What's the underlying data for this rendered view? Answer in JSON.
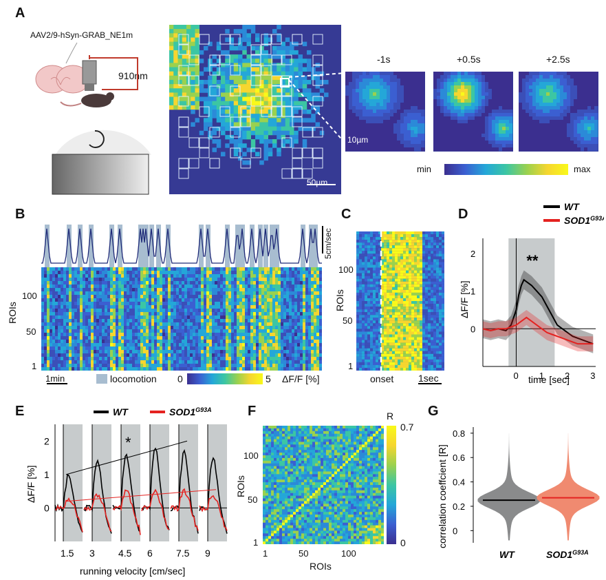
{
  "panel_labels": [
    "A",
    "B",
    "C",
    "D",
    "E",
    "F",
    "G"
  ],
  "panel_a": {
    "virus": "AAV2/9-hSyn-GRAB_NE1m",
    "laser": "910nm",
    "time_points": [
      "-1s",
      "+0.5s",
      "+2.5s"
    ],
    "scale_large": "50µm",
    "scale_small": "10µm",
    "cbar_min": "min",
    "cbar_max": "max"
  },
  "panel_b": {
    "ylabel": "ROIs",
    "yticks": [
      "100",
      "50",
      "1"
    ],
    "speed_scale": "5cm/sec",
    "time_scale": "1min",
    "legend_locomotion": "locomotion",
    "cbar_min": "0",
    "cbar_max": "5",
    "cbar_label": "ΔF/F [%]"
  },
  "panel_c": {
    "ylabel": "ROIs",
    "yticks": [
      "100",
      "50",
      "1"
    ],
    "onset": "onset",
    "time_scale": "1sec"
  },
  "panel_f": {
    "xlabel": "ROIs",
    "ylabel": "ROIs",
    "xticks": [
      "1",
      "50",
      "100"
    ],
    "yticks": [
      "100",
      "50",
      "1"
    ],
    "cbar_label": "R",
    "cbar_max": "0.7",
    "cbar_min": "0"
  },
  "chart_data": [
    {
      "panel": "D",
      "type": "line",
      "xlabel": "time [sec]",
      "ylabel": "ΔF/F [%]",
      "xlim": [
        -1.3,
        3.1
      ],
      "ylim": [
        -1,
        2.4
      ],
      "xticks": [
        0,
        1,
        2,
        3
      ],
      "yticks": [
        0,
        1,
        2
      ],
      "shaded_region": [
        -0.3,
        1.5
      ],
      "annotation": "**",
      "series": [
        {
          "name": "WT",
          "color": "#000000",
          "x": [
            -1.3,
            -1.0,
            -0.7,
            -0.4,
            -0.2,
            0,
            0.1,
            0.2,
            0.3,
            0.4,
            0.6,
            0.8,
            1.0,
            1.2,
            1.4,
            1.6,
            1.8,
            2.0,
            2.2,
            2.4,
            2.6,
            2.8,
            3.0
          ],
          "y": [
            0.0,
            -0.05,
            0.0,
            -0.05,
            0.1,
            0.5,
            0.9,
            1.15,
            1.3,
            1.25,
            1.15,
            1.0,
            0.85,
            0.6,
            0.35,
            0.1,
            0.0,
            -0.1,
            -0.2,
            -0.25,
            -0.3,
            -0.35,
            -0.4
          ]
        },
        {
          "name": "SOD1G93A",
          "color": "#e42220",
          "x": [
            -1.3,
            -1.0,
            -0.7,
            -0.4,
            -0.2,
            0,
            0.2,
            0.4,
            0.6,
            0.8,
            1.0,
            1.2,
            1.4,
            1.6,
            1.8,
            2.0,
            2.2,
            2.4,
            2.6,
            2.8,
            3.0
          ],
          "y": [
            0.0,
            -0.05,
            0.0,
            0.0,
            0.05,
            0.1,
            0.2,
            0.3,
            0.2,
            0.1,
            0.0,
            -0.1,
            -0.15,
            -0.2,
            -0.25,
            -0.3,
            -0.35,
            -0.4,
            -0.4,
            -0.4,
            -0.4
          ]
        }
      ]
    },
    {
      "panel": "E",
      "type": "line",
      "xlabel": "running velocity [cm/sec]",
      "ylabel": "ΔF/F [%]",
      "ylim": [
        -1.0,
        2.5
      ],
      "yticks": [
        0,
        1,
        2
      ],
      "categories": [
        "1.5",
        "3",
        "4.5",
        "6",
        "7.5",
        "9"
      ],
      "annotation": "*",
      "wt_peaks": [
        1.0,
        1.4,
        1.6,
        1.8,
        1.7,
        1.5
      ],
      "sod_peaks": [
        0.2,
        0.4,
        0.5,
        0.5,
        0.5,
        0.4
      ],
      "trend_wt": [
        1.0,
        2.0
      ],
      "trend_sod": [
        0.2,
        0.55
      ],
      "series": [
        {
          "name": "WT",
          "color": "#000000"
        },
        {
          "name": "SOD1G93A",
          "color": "#e42220"
        }
      ]
    },
    {
      "panel": "G",
      "type": "violin",
      "ylabel": "correlation coeffcient [R]",
      "ylim": [
        -0.1,
        0.85
      ],
      "yticks": [
        0,
        0.2,
        0.4,
        0.6,
        0.8
      ],
      "categories": [
        "WT",
        "SOD1G93A"
      ],
      "medians": [
        0.25,
        0.27
      ],
      "colors": [
        "#8a8b8c",
        "#f08a70"
      ],
      "median_colors": [
        "#000000",
        "#e42220"
      ]
    }
  ],
  "legend": {
    "wt": "WT",
    "sod_base": "SOD1",
    "sod_sup": "G93A",
    "sod_sup_short": "G93A"
  }
}
